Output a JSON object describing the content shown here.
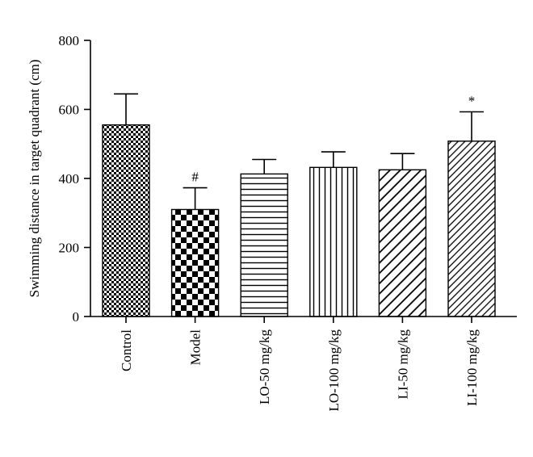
{
  "chart_data": {
    "type": "bar",
    "title": "",
    "xlabel": "",
    "ylabel": "Swimming distance in target quadrant (cm)",
    "ylim": [
      0,
      800
    ],
    "yticks": [
      0,
      200,
      400,
      600,
      800
    ],
    "grid": false,
    "legend": "none",
    "categories": [
      "Control",
      "Model",
      "LO-50 mg/kg",
      "LO-100 mg/kg",
      "LI-50 mg/kg",
      "LI-100 mg/kg"
    ],
    "values": [
      555,
      310,
      413,
      432,
      425,
      508
    ],
    "errors": [
      90,
      63,
      42,
      45,
      47,
      85
    ],
    "annotations": [
      "",
      "#",
      "",
      "",
      "",
      "*"
    ],
    "patterns": [
      "fine-checker",
      "coarse-checker",
      "horizontal-lines",
      "vertical-lines",
      "diagonal-up",
      "diagonal-up-dense"
    ]
  }
}
